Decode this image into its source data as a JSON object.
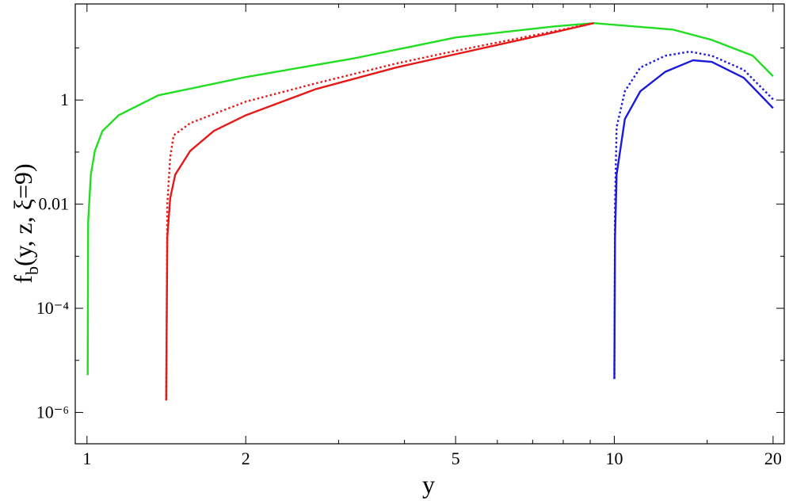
{
  "chart_data": {
    "type": "line",
    "log_x": true,
    "log_y": true,
    "xlabel": "y",
    "ylabel": {
      "main": "f",
      "sub": "b",
      "rest": "(y, z, ξ=9)"
    },
    "xlim": [
      0.95,
      21
    ],
    "ylim": [
      2.5e-07,
      70
    ],
    "xticks": [
      1,
      2,
      5,
      10,
      20
    ],
    "xminor_ticks": [
      3,
      4,
      6,
      7,
      8,
      9,
      15
    ],
    "yticks": [
      {
        "value": 1e-06,
        "label": "10⁻⁶"
      },
      {
        "value": 0.0001,
        "label": "10⁻⁴"
      },
      0.01,
      1
    ],
    "yminor_ticks": [
      1e-05,
      0.001,
      0.1,
      10
    ],
    "series": [
      {
        "color": "#22dd22",
        "dash": "solid",
        "x": [
          1.003,
          1.005,
          1.017,
          1.035,
          1.07,
          1.148,
          1.365,
          2,
          3.23,
          5,
          7.7,
          9.14,
          12.9,
          15.3,
          18.3,
          20
        ],
        "values": [
          5.2e-06,
          0.0046,
          0.037,
          0.106,
          0.255,
          0.51,
          1.23,
          2.76,
          6.4,
          15.9,
          26,
          30,
          22.6,
          14.3,
          7.1,
          2.86
        ]
      },
      {
        "color": "#e61919",
        "dash": "solid",
        "x": [
          1.413,
          1.42,
          1.438,
          1.47,
          1.57,
          1.74,
          2,
          2.72,
          3.85,
          5,
          7.7,
          9.14
        ],
        "values": [
          1.7e-06,
          0.0023,
          0.013,
          0.037,
          0.106,
          0.255,
          0.51,
          1.63,
          4.2,
          7.6,
          20,
          30
        ]
      },
      {
        "color": "#e61919",
        "dash": "dotted",
        "x": [
          1.413,
          1.42,
          1.438,
          1.46,
          1.57,
          2,
          2.72,
          3.85,
          5,
          7.7,
          9.14
        ],
        "values": [
          1.7e-06,
          0.01,
          0.08,
          0.21,
          0.36,
          0.93,
          2.1,
          5,
          8.8,
          21,
          30
        ]
      },
      {
        "color": "#1a1adb",
        "dash": "solid",
        "x": [
          10,
          10.03,
          10.1,
          10.47,
          11.2,
          12.5,
          14.1,
          15.3,
          17.6,
          20
        ],
        "values": [
          4.4e-06,
          0.0023,
          0.037,
          0.43,
          1.47,
          3.5,
          5.8,
          5.4,
          2.67,
          0.7
        ]
      },
      {
        "color": "#1a1adb",
        "dash": "dotted",
        "x": [
          10,
          10.03,
          10.1,
          10.47,
          11.2,
          12.5,
          13.9,
          15.3,
          17.6,
          20
        ],
        "values": [
          4.4e-06,
          0.01,
          0.3,
          1.47,
          4.2,
          7.1,
          8.5,
          7.1,
          3.8,
          1.03
        ]
      }
    ]
  }
}
